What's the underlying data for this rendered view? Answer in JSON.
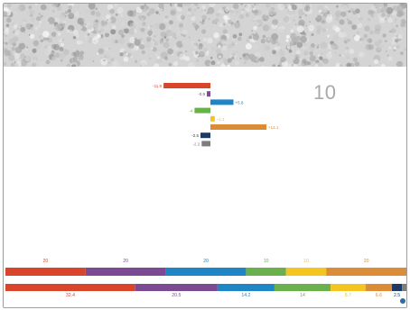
{
  "page_number": "10",
  "colors": [
    "#d9452b",
    "#7b4a93",
    "#1e86c6",
    "#6ab04c",
    "#f4c51f",
    "#dd8c36",
    "#1d3a64",
    "#7d7d7d"
  ],
  "chart_data": [
    {
      "type": "bar",
      "orientation": "horizontal",
      "description_of_encoding": "diverging bars around zero",
      "categories": [
        "1",
        "2",
        "3",
        "4",
        "5",
        "6",
        "7",
        "8"
      ],
      "values": [
        -11.8,
        -0.9,
        5.8,
        -4,
        1.1,
        14.1,
        -2.5,
        -2.2
      ],
      "labels": [
        "-11.8",
        "-0.9",
        "+5.8",
        "-4",
        "+1.1",
        "+14.1",
        "-2.5",
        "-2.2"
      ],
      "xlim": [
        -12,
        14.5
      ],
      "grid": false
    },
    {
      "type": "bar",
      "orientation": "horizontal",
      "stacked": true,
      "series": [
        {
          "values": [
            20,
            20,
            20,
            10,
            10,
            20,
            0,
            0
          ],
          "labels": [
            "20",
            "20",
            "20",
            "10",
            "10",
            "20",
            "",
            ""
          ]
        },
        {
          "values": [
            32.4,
            20.5,
            14.2,
            14,
            8.7,
            6.6,
            2.5,
            1.1
          ],
          "labels": [
            "32.4",
            "20.5",
            "14.2",
            "14",
            "8.7",
            "6.6",
            "2.5",
            ""
          ]
        }
      ]
    }
  ]
}
